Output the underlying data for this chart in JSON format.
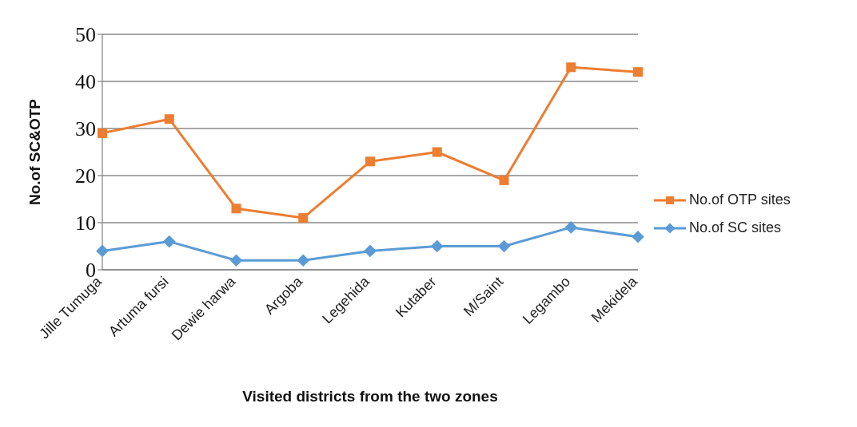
{
  "chart_data": {
    "type": "line",
    "xlabel": "Visited districts from the two zones",
    "ylabel": "No.of SC&OTP",
    "categories": [
      "Jille Tumuga",
      "Artuma fursi",
      "Dewie harwa",
      "Argoba",
      "Legehida",
      "Kutaber",
      "M/Saint",
      "Legambo",
      "Mekidela"
    ],
    "series": [
      {
        "name": "No.of OTP sites",
        "color": "#ed7d31",
        "marker": "square",
        "values": [
          29,
          32,
          13,
          11,
          23,
          25,
          19,
          43,
          42
        ]
      },
      {
        "name": "No.of SC sites",
        "color": "#5b9bd5",
        "marker": "diamond",
        "values": [
          4,
          6,
          2,
          2,
          4,
          5,
          5,
          9,
          7
        ]
      }
    ],
    "ylim": [
      0,
      50
    ],
    "yticks": [
      0,
      10,
      20,
      30,
      40,
      50
    ],
    "grid": "y",
    "legend": "right"
  }
}
